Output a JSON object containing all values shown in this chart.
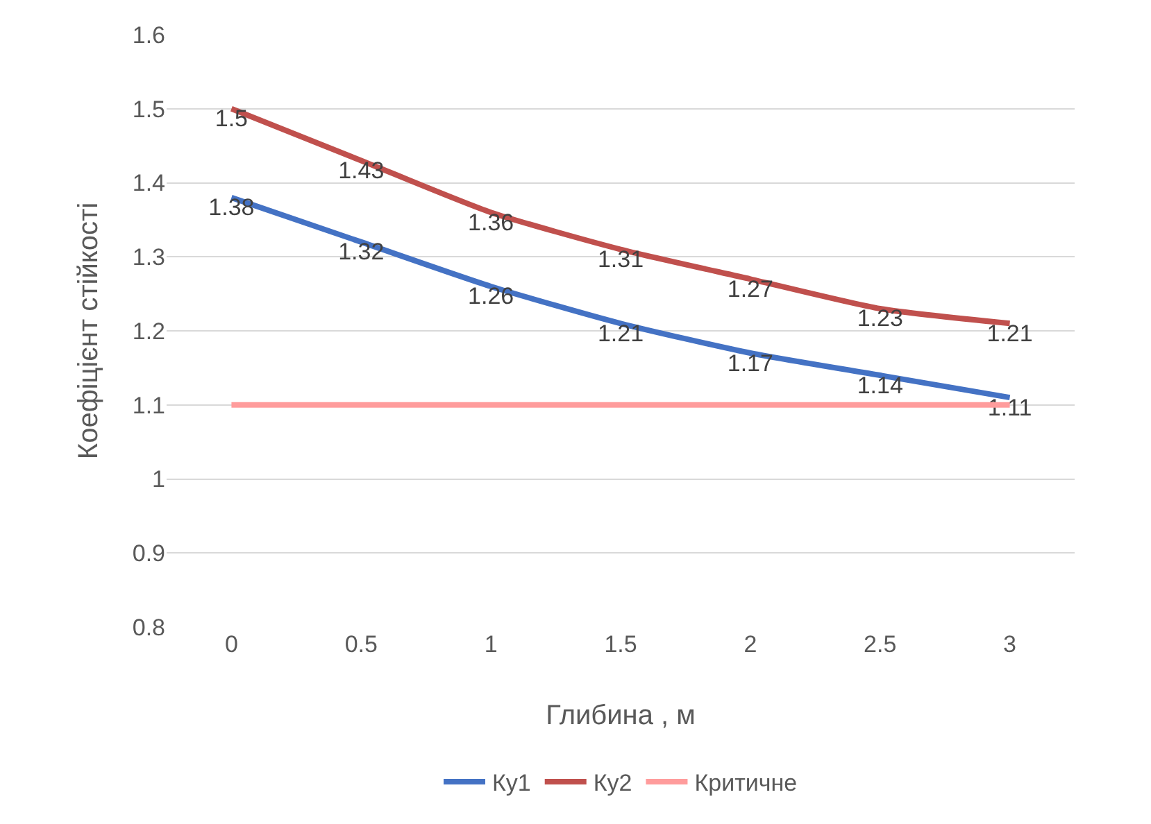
{
  "chart_data": {
    "type": "line",
    "xlabel": "Глибина , м",
    "ylabel": "Коефіцієнт стійкості",
    "x": [
      0,
      0.5,
      1,
      1.5,
      2,
      2.5,
      3
    ],
    "xlim": [
      -0.25,
      3.25
    ],
    "xticks": [
      0,
      0.5,
      1,
      1.5,
      2,
      2.5,
      3
    ],
    "ylim": [
      0.8,
      1.6
    ],
    "yticks": [
      0.8,
      0.9,
      1,
      1.1,
      1.2,
      1.3,
      1.4,
      1.5,
      1.6
    ],
    "series": [
      {
        "name": "Ку1",
        "color": "#4472c4",
        "values": [
          1.38,
          1.32,
          1.26,
          1.21,
          1.17,
          1.14,
          1.11
        ],
        "value_labels": [
          "1.38",
          "1.32",
          "1.26",
          "1.21",
          "1.17",
          "1.14",
          "1.11"
        ]
      },
      {
        "name": "Ку2",
        "color": "#c0504d",
        "values": [
          1.5,
          1.43,
          1.36,
          1.31,
          1.27,
          1.23,
          1.21
        ],
        "value_labels": [
          "1.5",
          "1.43",
          "1.36",
          "1.31",
          "1.27",
          "1.23",
          "1.21"
        ]
      },
      {
        "name": "Критичне",
        "color": "#ff9c9c",
        "values": [
          1.1,
          1.1,
          1.1,
          1.1,
          1.1,
          1.1,
          1.1
        ]
      }
    ],
    "grid": "y",
    "legend": "bottom",
    "marker": "none",
    "line_style": "solid"
  }
}
